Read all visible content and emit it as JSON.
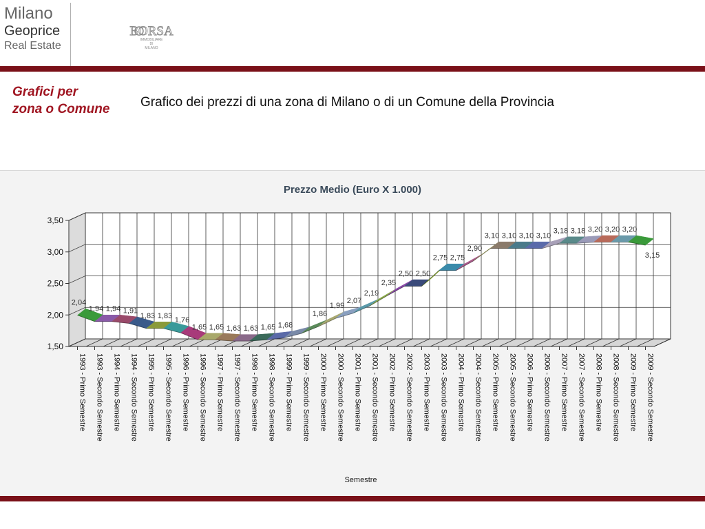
{
  "logo": {
    "line1": "Milano",
    "line2": "Geoprice",
    "line3": "Real Estate"
  },
  "partner_logo": {
    "title": "BORSA",
    "line2": "IMMOBILIARE",
    "line3": "DI",
    "line4": "MILANO"
  },
  "section_title": [
    "Grafici per",
    "zona o Comune"
  ],
  "headline": "Grafico dei prezzi di una zona di Milano o di un Comune della Provincia",
  "colors": {
    "bar": "#7a1018",
    "accent": "#a01622"
  },
  "chart_data": {
    "type": "line",
    "title": "Prezzo Medio (Euro X 1.000)",
    "xlabel": "Semestre",
    "ylabel": "",
    "ylim": [
      1.5,
      3.5
    ],
    "yticks": [
      "1,50",
      "2,00",
      "2,50",
      "3,00",
      "3,50"
    ],
    "grid": true,
    "categories": [
      "1993 - Primo Semestre",
      "1993 - Secondo Semestre",
      "1994 - Primo Semestre",
      "1994 - Secondo Semestre",
      "1995 - Primo Semestre",
      "1995 - Secondo Semestre",
      "1996 - Primo Semestre",
      "1996 - Secondo Semestre",
      "1997 - Primo Semestre",
      "1997 - Secondo Semestre",
      "1998 - Primo Semestre",
      "1998 - Secondo Semestre",
      "1999 - Primo Semestre",
      "1999 - Secondo Semestre",
      "2000 - Primo Semestre",
      "2000 - Secondo Semestre",
      "2001 - Primo Semestre",
      "2001 - Secondo Semestre",
      "2002 - Primo Semestre",
      "2002 - Secondo Semestre",
      "2003 - Primo Semestre",
      "2003 - Secondo Semestre",
      "2004 - Primo Semestre",
      "2004 - Secondo Semestre",
      "2005 - Primo Semestre",
      "2005 - Secondo Semestre",
      "2006 - Primo Semestre",
      "2006 - Secondo Semestre",
      "2007 - Primo Semestre",
      "2007 - Secondo Semestre",
      "2008 - Primo Semestre",
      "2008 - Secondo Semestre",
      "2009 - Primo Semestre",
      "2009 - Secondo Semestre"
    ],
    "values": [
      2.04,
      1.94,
      1.94,
      1.91,
      1.83,
      1.83,
      1.76,
      1.65,
      1.65,
      1.63,
      1.63,
      1.65,
      1.68,
      1.75,
      1.86,
      1.99,
      2.07,
      2.19,
      2.35,
      2.5,
      2.5,
      2.75,
      2.75,
      2.9,
      3.1,
      3.1,
      3.1,
      3.1,
      3.18,
      3.18,
      3.2,
      3.2,
      3.2,
      3.15
    ],
    "data_labels": [
      "2,04",
      "1,94",
      "1,94",
      "1,91",
      "1,83",
      "1,83",
      "1,76",
      "1,65",
      "1,65",
      "1,63",
      "1,63",
      "1,65",
      "1,68",
      "",
      "1,86",
      "1,99",
      "2,07",
      "2,19",
      "2,35",
      "2,50",
      "2,50",
      "2,75",
      "2,75",
      "2,90",
      "3,10",
      "3,10",
      "3,10",
      "3,10",
      "3,18",
      "3,18",
      "3,20",
      "3,20",
      "3,20",
      "3,15"
    ],
    "segment_colors": [
      "#3a9a3a",
      "#8a5aa8",
      "#9a4a6a",
      "#3a5a8a",
      "#8a9a3a",
      "#3a9a9a",
      "#a83a7a",
      "#a8a86a",
      "#9a7a5a",
      "#8a6a8a",
      "#3a6a5a",
      "#5a6aa8",
      "#7a8aa8",
      "#5a8a5a",
      "#a8a870",
      "#8aa0c0",
      "#5a9aaa",
      "#8aa84a",
      "#8a4aa8",
      "#3a4a7a",
      "#8aa83a",
      "#3a8aaa",
      "#a85a8a",
      "#a8a860",
      "#8a7a6a",
      "#4a7a8a",
      "#5a6aaa",
      "#a8a0b8",
      "#5a8a8a",
      "#9a9ab8",
      "#b86a5a",
      "#6a9aaa",
      "#3a9a3a"
    ]
  }
}
